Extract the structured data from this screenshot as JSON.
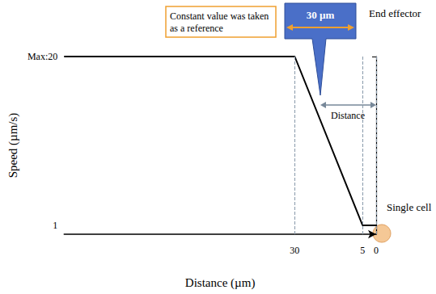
{
  "chart_data": {
    "type": "line",
    "x": [
      115,
      30,
      5,
      0
    ],
    "values": [
      20,
      20,
      1,
      1
    ],
    "color": "#000000",
    "xlim": [
      115,
      0
    ],
    "xticks": [
      30,
      5,
      0
    ],
    "ylim": [
      0,
      20
    ],
    "yticks": [
      1,
      {
        "value": 20,
        "label": "Max:20"
      }
    ],
    "x_label": "Distance (µm)",
    "y_label": "Speed (µm/s)",
    "annotations": {
      "reference_note": "Constant value was taken as a reference",
      "effector_width": "30 µm",
      "distance": "Distance",
      "end_effector": "End effector",
      "cell": "Single cell"
    },
    "grid": false
  }
}
